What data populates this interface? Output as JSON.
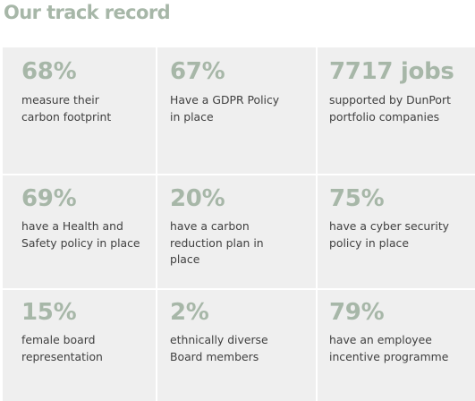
{
  "header": {
    "title": "Our track record"
  },
  "stats": [
    {
      "value": "68%",
      "description": "measure their\ncarbon footprint"
    },
    {
      "value": "67%",
      "description": "Have a GDPR Policy\nin place"
    },
    {
      "value": "7717 jobs",
      "description": "supported by DunPort\nportfolio companies"
    },
    {
      "value": "69%",
      "description": "have a Health and\nSafety policy in place"
    },
    {
      "value": "20%",
      "description": "have a carbon\nreduction plan in\nplace"
    },
    {
      "value": "75%",
      "description": "have a cyber security\npolicy in place"
    },
    {
      "value": "15%",
      "description": "female board\nrepresentation"
    },
    {
      "value": "2%",
      "description": "ethnically diverse\nBoard members"
    },
    {
      "value": "79%",
      "description": "have an employee\nincentive programme"
    }
  ],
  "colors": {
    "accent": "#a7b7a8",
    "cell_background": "#efefef",
    "text": "#404040"
  }
}
